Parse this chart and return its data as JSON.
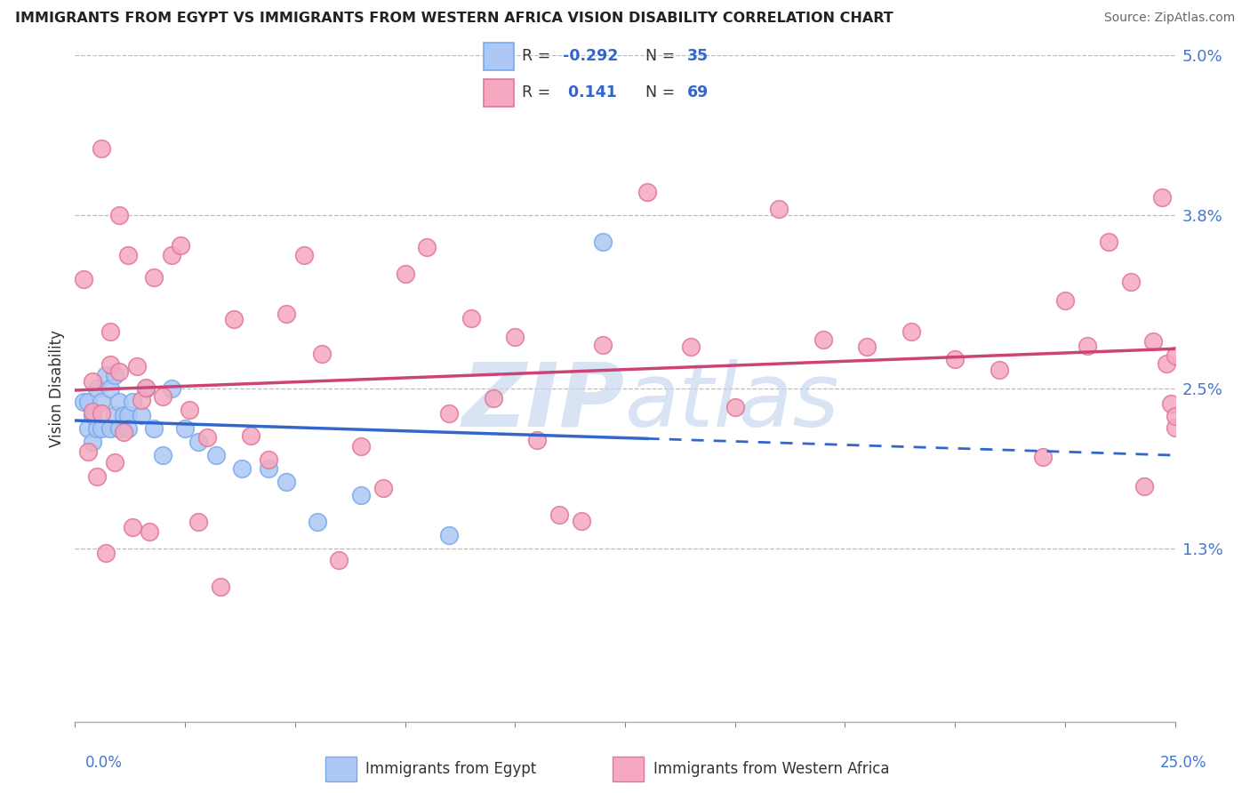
{
  "title": "IMMIGRANTS FROM EGYPT VS IMMIGRANTS FROM WESTERN AFRICA VISION DISABILITY CORRELATION CHART",
  "source": "Source: ZipAtlas.com",
  "egypt_color": "#adc8f5",
  "egypt_edge": "#7aaae8",
  "egypt_R": -0.292,
  "egypt_N": 35,
  "egypt_label": "Immigrants from Egypt",
  "wa_color": "#f5a8bf",
  "wa_edge": "#e07898",
  "wa_R": 0.141,
  "wa_N": 69,
  "wa_label": "Immigrants from Western Africa",
  "xmin": 0.0,
  "xmax": 0.25,
  "ymin": 0.0,
  "ymax": 0.05,
  "ytick_vals": [
    0.013,
    0.025,
    0.038,
    0.05
  ],
  "ytick_labels": [
    "1.3%",
    "2.5%",
    "3.8%",
    "5.0%"
  ],
  "grid_vals": [
    0.013,
    0.025,
    0.038,
    0.05
  ],
  "line_blue": "#3366cc",
  "line_pink": "#cc4477",
  "watermark_color": "#c8d8f0",
  "egypt_seed": 42,
  "wa_seed": 7
}
